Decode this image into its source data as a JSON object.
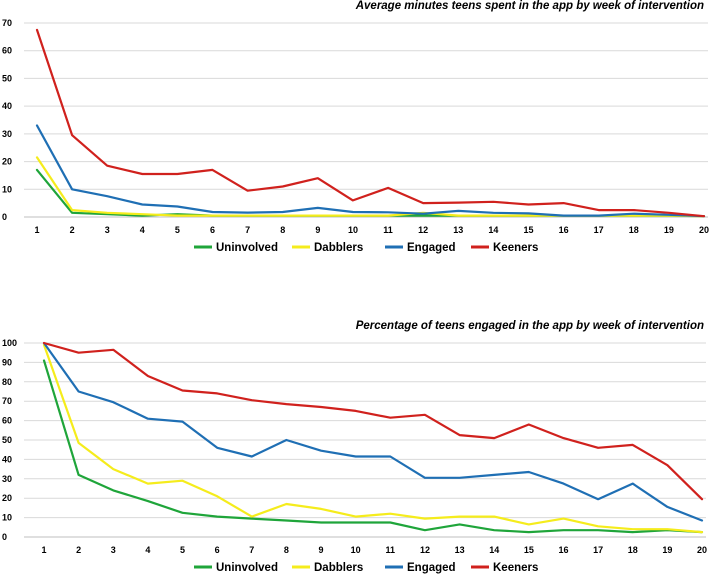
{
  "chart_data": [
    {
      "type": "line",
      "title": "Average minutes teens spent in the app by week of intervention",
      "xlabel": "",
      "ylabel": "",
      "ylim": [
        0,
        70
      ],
      "yticks": [
        "0",
        "10",
        "20",
        "30",
        "40",
        "50",
        "60",
        "70"
      ],
      "categories": [
        "1",
        "2",
        "3",
        "4",
        "5",
        "6",
        "7",
        "8",
        "9",
        "10",
        "11",
        "12",
        "13",
        "14",
        "15",
        "16",
        "17",
        "18",
        "19",
        "20"
      ],
      "grid": true,
      "legend_position": "bottom",
      "series": [
        {
          "name": "Uninvolved",
          "color": "#1fa53a",
          "values": [
            17,
            1.5,
            1,
            0.5,
            1,
            0.5,
            0.5,
            0.5,
            0.5,
            0.5,
            0.5,
            0.5,
            0.5,
            0.5,
            0.5,
            0.5,
            0.5,
            0.5,
            0.5,
            0.3
          ]
        },
        {
          "name": "Dabblers",
          "color": "#f5ec1c",
          "values": [
            21.5,
            2.5,
            1.5,
            1,
            0.5,
            0.5,
            0.5,
            0.5,
            0.5,
            0.5,
            0.5,
            1.5,
            0.5,
            0.5,
            0.5,
            0.5,
            0.5,
            0.5,
            0.5,
            0.3
          ]
        },
        {
          "name": "Engaged",
          "color": "#1f6fb4",
          "values": [
            33,
            10,
            7.5,
            4.5,
            3.8,
            1.8,
            1.6,
            1.8,
            3.3,
            1.8,
            1.7,
            1.2,
            2.2,
            1.5,
            1.3,
            0.5,
            0.5,
            1.2,
            0.8,
            0.3
          ]
        },
        {
          "name": "Keeners",
          "color": "#d0211d",
          "values": [
            67.5,
            29.5,
            18.5,
            15.5,
            15.5,
            17,
            9.5,
            11,
            14,
            6,
            10.5,
            5,
            5.2,
            5.5,
            4.5,
            5,
            2.5,
            2.5,
            1.5,
            0.3
          ]
        }
      ]
    },
    {
      "type": "line",
      "title": "Percentage of teens engaged in the app by week of intervention",
      "xlabel": "",
      "ylabel": "",
      "ylim": [
        0,
        100
      ],
      "yticks": [
        "0",
        "10",
        "20",
        "30",
        "40",
        "50",
        "60",
        "70",
        "80",
        "90",
        "100"
      ],
      "categories": [
        "1",
        "2",
        "3",
        "4",
        "5",
        "6",
        "7",
        "8",
        "9",
        "10",
        "11",
        "12",
        "13",
        "14",
        "15",
        "16",
        "17",
        "18",
        "19",
        "20"
      ],
      "grid": true,
      "legend_position": "bottom",
      "series": [
        {
          "name": "Uninvolved",
          "color": "#1fa53a",
          "values": [
            91,
            32,
            24,
            18.5,
            12.5,
            10.5,
            9.5,
            8.5,
            7.5,
            7.5,
            7.5,
            3.5,
            6.5,
            3.5,
            2.5,
            3.5,
            3.5,
            2.5,
            3.5,
            2.5
          ]
        },
        {
          "name": "Dabblers",
          "color": "#f5ec1c",
          "values": [
            99,
            48.5,
            35,
            27.5,
            29,
            21,
            10.5,
            17,
            14.5,
            10.5,
            12,
            9.5,
            10.5,
            10.5,
            6.5,
            9.5,
            5.5,
            4,
            4,
            2.5
          ]
        },
        {
          "name": "Engaged",
          "color": "#1f6fb4",
          "values": [
            100,
            75,
            69.5,
            61,
            59.5,
            46,
            41.5,
            50,
            44.5,
            41.5,
            41.5,
            30.5,
            30.5,
            32,
            33.5,
            27.5,
            19.5,
            27.5,
            15.5,
            8.5
          ]
        },
        {
          "name": "Keeners",
          "color": "#d0211d",
          "values": [
            100,
            95,
            96.5,
            83,
            75.5,
            74,
            70.5,
            68.5,
            67,
            65,
            61.5,
            63,
            52.5,
            51,
            58,
            51,
            46,
            47.5,
            37,
            19.5
          ]
        }
      ]
    }
  ]
}
